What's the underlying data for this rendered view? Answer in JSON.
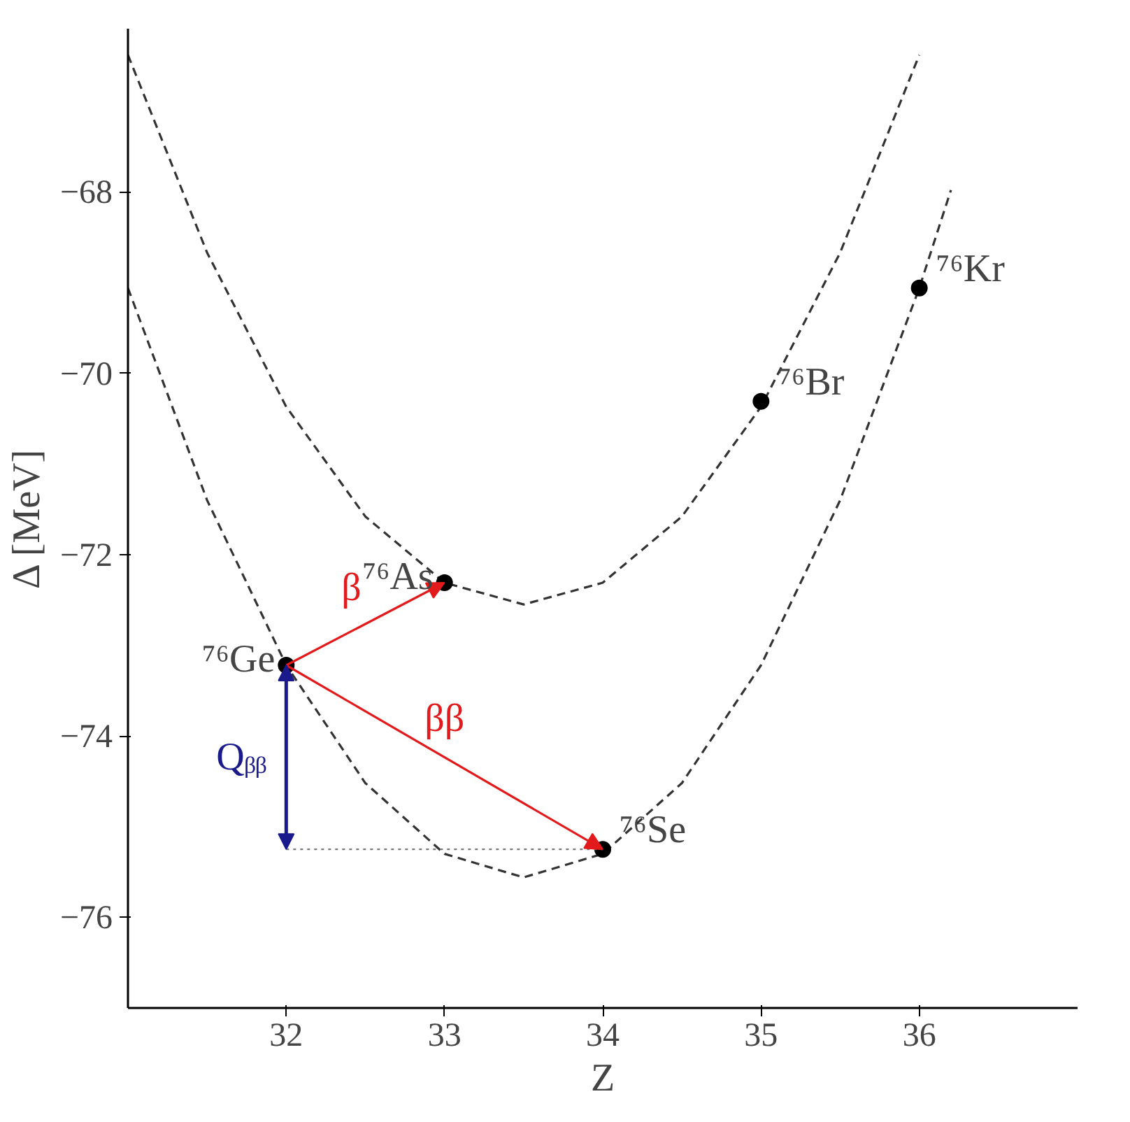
{
  "chart_data": {
    "type": "line",
    "xlabel": "Z",
    "ylabel": "Δ [MeV]",
    "xlim": [
      31,
      37
    ],
    "ylim": [
      -77,
      -66.2
    ],
    "xticks": [
      32,
      33,
      34,
      35,
      36
    ],
    "yticks": [
      -76,
      -74,
      -72,
      -70,
      -68
    ],
    "grid": false,
    "series": [
      {
        "color": "#333333",
        "line_style": "dashed",
        "x": [
          31,
          31.5,
          32,
          32.5,
          33,
          33.5,
          34,
          34.5,
          35,
          35.5,
          36
        ],
        "values": [
          -66.49,
          -68.67,
          -70.37,
          -71.58,
          -72.31,
          -72.55,
          -72.31,
          -71.58,
          -70.37,
          -68.67,
          -66.49
        ]
      },
      {
        "color": "#333333",
        "line_style": "dashed",
        "x": [
          31,
          31.5,
          32,
          32.5,
          33,
          33.5,
          34,
          34.5,
          35,
          35.5,
          36,
          36.2
        ],
        "values": [
          -69.06,
          -71.4,
          -73.22,
          -74.52,
          -75.3,
          -75.56,
          -75.3,
          -74.52,
          -73.22,
          -71.4,
          -69.06,
          -67.98
        ]
      },
      {
        "type": "scatter",
        "color": "#000000",
        "marker": "circle",
        "x": [
          32,
          33,
          34,
          35,
          36
        ],
        "values": [
          -73.22,
          -72.31,
          -75.25,
          -70.31,
          -69.06
        ]
      }
    ],
    "annotations": [
      {
        "text": "⁷⁶Ge",
        "x": 32,
        "y": -73.22
      },
      {
        "text": "⁷⁶As",
        "x": 33,
        "y": -72.31
      },
      {
        "text": "⁷⁶Se",
        "x": 34,
        "y": -75.25
      },
      {
        "text": "⁷⁶Br",
        "x": 35,
        "y": -70.31
      },
      {
        "text": "⁷⁶Kr",
        "x": 36,
        "y": -69.06
      },
      "β",
      "ββ",
      "Qᵦᵦ"
    ]
  }
}
